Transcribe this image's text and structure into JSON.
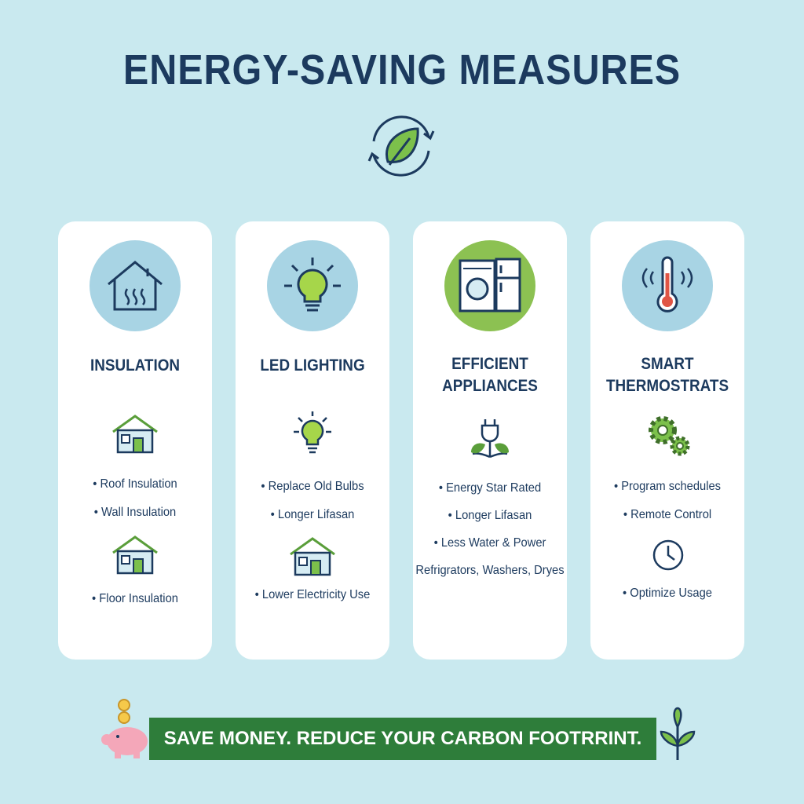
{
  "header": {
    "title": "ENERGY-SAVING MEASURES"
  },
  "cards": [
    {
      "title": "INSULATION",
      "items": [
        "Roof Insulation",
        "Wall Insulation",
        "Floor Insulation"
      ]
    },
    {
      "title": "LED LIGHTING",
      "items": [
        "Replace Old Bulbs",
        "Longer Lifasan",
        "Lower Electricity Use"
      ]
    },
    {
      "title": "EFFICIENT APPLIANCES",
      "items": [
        "Energy Star Rated",
        "Longer Lifasan",
        "Less Water & Power",
        "Refrigrators, Washers, Dryes"
      ]
    },
    {
      "title": "SMART THERMOSTRATS",
      "items": [
        "Program schedules",
        "Remote Control",
        "Optimize Usage"
      ]
    }
  ],
  "footer": {
    "banner": "SAVE MONEY. REDUCE YOUR CARBON FOOTRRINT."
  }
}
